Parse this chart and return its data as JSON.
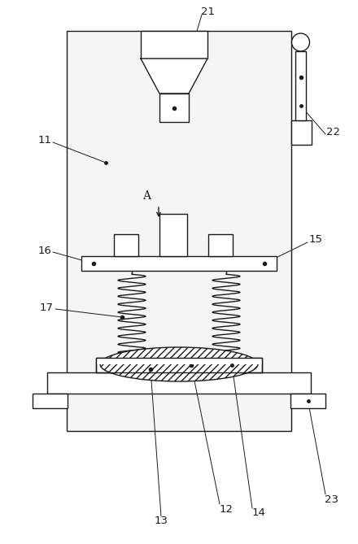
{
  "bg_color": "#ffffff",
  "line_color": "#1a1a1a",
  "fill_light": "#f5f5f5",
  "fill_white": "#ffffff",
  "lw": 1.0
}
